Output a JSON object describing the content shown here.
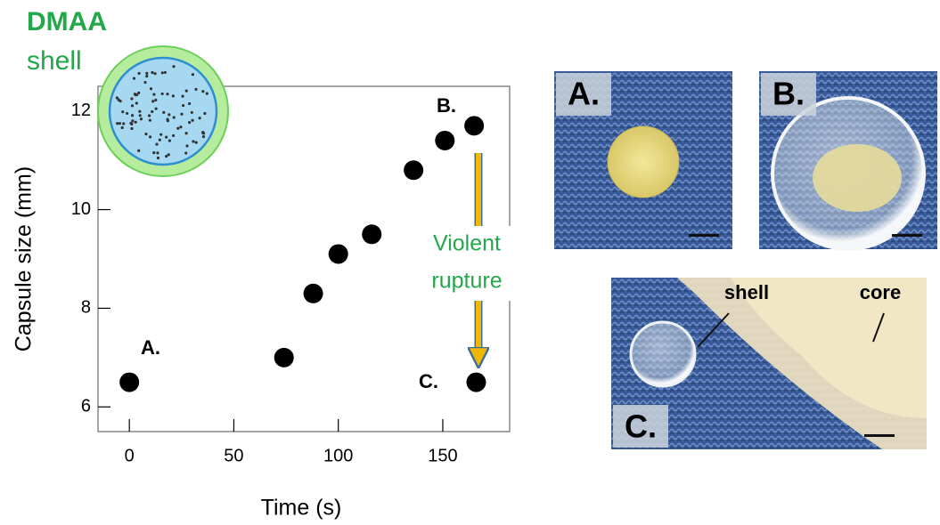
{
  "chart_data": {
    "type": "scatter",
    "x": [
      0,
      74,
      88,
      100,
      116,
      136,
      151,
      165,
      166
    ],
    "values": [
      6.5,
      7.0,
      8.3,
      9.1,
      9.5,
      10.8,
      11.4,
      11.7,
      6.5
    ],
    "xlim": [
      -15,
      182
    ],
    "ylim": [
      5.5,
      12.5
    ],
    "xticks": [
      0,
      50,
      100,
      150
    ],
    "yticks": [
      6,
      8,
      10,
      12
    ],
    "xlabel": "Time (s)",
    "ylabel": "Capsule size (mm)",
    "color": "#000000",
    "annotations": {
      "inset_title": "DMAA",
      "inset_subtitle": "shell",
      "point_labels": [
        "A.",
        "B.",
        "C."
      ],
      "arrow_text": [
        "Violent",
        "rupture"
      ]
    }
  },
  "photos": [
    {
      "label": "A."
    },
    {
      "label": "B."
    },
    {
      "label": "C.",
      "callouts": [
        "shell",
        "core"
      ]
    }
  ]
}
